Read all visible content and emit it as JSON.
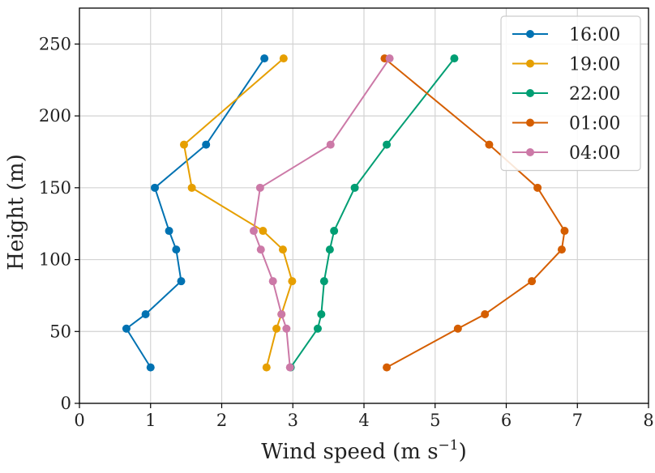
{
  "chart_data": {
    "type": "line",
    "xlabel": "Wind speed (m s",
    "xlabel_sup": "−1",
    "xlabel_close": ")",
    "ylabel": "Height (m)",
    "xlim": [
      0,
      8
    ],
    "ylim": [
      0,
      275
    ],
    "xticks": [
      0,
      1,
      2,
      3,
      4,
      5,
      6,
      7,
      8
    ],
    "yticks": [
      0,
      50,
      100,
      150,
      200,
      250
    ],
    "grid": true,
    "legend_position": "top-right",
    "series": [
      {
        "name": "16:00",
        "color": "#0072b2",
        "points": [
          [
            1.0,
            25
          ],
          [
            0.66,
            52
          ],
          [
            0.93,
            62
          ],
          [
            1.43,
            85
          ],
          [
            1.36,
            107
          ],
          [
            1.26,
            120
          ],
          [
            1.06,
            150
          ],
          [
            1.78,
            180
          ],
          [
            2.6,
            240
          ]
        ]
      },
      {
        "name": "19:00",
        "color": "#e69f00",
        "points": [
          [
            2.63,
            25
          ],
          [
            2.77,
            52
          ],
          [
            2.84,
            62
          ],
          [
            2.99,
            85
          ],
          [
            2.86,
            107
          ],
          [
            2.58,
            120
          ],
          [
            1.58,
            150
          ],
          [
            1.47,
            180
          ],
          [
            2.87,
            240
          ]
        ]
      },
      {
        "name": "22:00",
        "color": "#009e73",
        "points": [
          [
            2.97,
            25
          ],
          [
            3.35,
            52
          ],
          [
            3.4,
            62
          ],
          [
            3.44,
            85
          ],
          [
            3.52,
            107
          ],
          [
            3.58,
            120
          ],
          [
            3.87,
            150
          ],
          [
            4.32,
            180
          ],
          [
            5.27,
            240
          ]
        ]
      },
      {
        "name": "01:00",
        "color": "#d55e00",
        "points": [
          [
            4.32,
            25
          ],
          [
            5.32,
            52
          ],
          [
            5.7,
            62
          ],
          [
            6.36,
            85
          ],
          [
            6.78,
            107
          ],
          [
            6.82,
            120
          ],
          [
            6.44,
            150
          ],
          [
            5.76,
            180
          ],
          [
            4.29,
            240
          ]
        ]
      },
      {
        "name": "04:00",
        "color": "#cc79a7",
        "points": [
          [
            2.96,
            25
          ],
          [
            2.91,
            52
          ],
          [
            2.84,
            62
          ],
          [
            2.72,
            85
          ],
          [
            2.55,
            107
          ],
          [
            2.45,
            120
          ],
          [
            2.54,
            150
          ],
          [
            3.53,
            180
          ],
          [
            4.36,
            240
          ]
        ]
      }
    ]
  }
}
